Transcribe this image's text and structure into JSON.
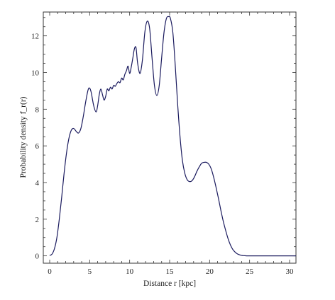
{
  "chart_data": {
    "type": "line",
    "title": "",
    "xlabel": "Distance r [kpc]",
    "ylabel": "Probability density f_r(r)",
    "xlim": [
      -0.8,
      30.8
    ],
    "ylim": [
      -0.4,
      13.3
    ],
    "x_ticks": [
      0,
      5,
      10,
      15,
      20,
      25,
      30
    ],
    "y_ticks": [
      0,
      2,
      4,
      6,
      8,
      10,
      12
    ],
    "grid": false,
    "series": [
      {
        "color": "#1a1a5e",
        "x": [
          0,
          0.3,
          0.6,
          0.9,
          1.2,
          1.5,
          1.8,
          2.1,
          2.4,
          2.7,
          3.0,
          3.3,
          3.6,
          3.9,
          4.2,
          4.5,
          4.8,
          5.0,
          5.2,
          5.5,
          5.8,
          6.0,
          6.2,
          6.4,
          6.6,
          6.8,
          7.0,
          7.2,
          7.4,
          7.6,
          7.8,
          8.0,
          8.2,
          8.4,
          8.6,
          8.8,
          9.0,
          9.2,
          9.4,
          9.6,
          9.8,
          10.0,
          10.2,
          10.4,
          10.6,
          10.8,
          11.0,
          11.3,
          11.6,
          11.9,
          12.2,
          12.5,
          12.8,
          13.1,
          13.4,
          13.7,
          14.0,
          14.3,
          14.6,
          14.9,
          15.1,
          15.4,
          15.7,
          16.0,
          16.3,
          16.6,
          16.9,
          17.2,
          17.5,
          17.8,
          18.1,
          18.4,
          18.7,
          19.0,
          19.3,
          19.6,
          19.9,
          20.2,
          20.5,
          20.8,
          21.1,
          21.4,
          21.7,
          22.0,
          22.3,
          22.6,
          22.9,
          23.2,
          23.5,
          23.8,
          24.1,
          24.4,
          24.7,
          25.0,
          25.5,
          26.0,
          27.0,
          28.0,
          29.0,
          30.0,
          30.8
        ],
        "y": [
          0.02,
          0.1,
          0.4,
          1.0,
          2.0,
          3.2,
          4.5,
          5.6,
          6.4,
          6.85,
          6.95,
          6.8,
          6.7,
          6.95,
          7.6,
          8.4,
          9.05,
          9.15,
          8.9,
          8.2,
          7.85,
          8.2,
          8.8,
          9.1,
          8.8,
          8.5,
          8.7,
          9.1,
          9.0,
          9.2,
          9.1,
          9.3,
          9.25,
          9.4,
          9.5,
          9.45,
          9.7,
          9.6,
          9.9,
          10.1,
          10.35,
          9.95,
          10.3,
          10.8,
          11.3,
          11.35,
          10.5,
          9.95,
          10.7,
          12.2,
          12.8,
          12.4,
          10.8,
          9.3,
          8.75,
          9.3,
          10.8,
          12.2,
          12.95,
          13.05,
          12.95,
          12.2,
          10.4,
          8.3,
          6.5,
          5.2,
          4.5,
          4.15,
          4.05,
          4.1,
          4.3,
          4.6,
          4.85,
          5.05,
          5.1,
          5.1,
          5.0,
          4.75,
          4.3,
          3.75,
          3.15,
          2.5,
          1.9,
          1.4,
          0.95,
          0.6,
          0.35,
          0.2,
          0.1,
          0.05,
          0.02,
          0.01,
          0.0,
          0.0,
          0.0,
          0.0,
          0.0,
          0.0,
          0.0,
          0.0,
          0.0
        ]
      }
    ]
  }
}
